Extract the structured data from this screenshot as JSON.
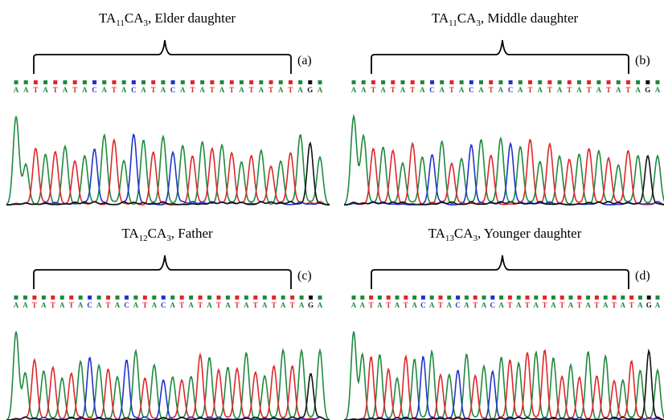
{
  "panels": [
    {
      "title": {
        "a": "TA",
        "n1": "11",
        "b": "CA",
        "n2": "3",
        "rest": ", Elder daughter"
      },
      "label": "(a)",
      "bases": [
        "A",
        "A",
        "T",
        "A",
        "T",
        "A",
        "T",
        "A",
        "C",
        "A",
        "T",
        "A",
        "C",
        "A",
        "T",
        "A",
        "C",
        "A",
        "T",
        "A",
        "T",
        "A",
        "T",
        "A",
        "T",
        "A",
        "T",
        "A",
        "T",
        "A",
        "G",
        "A"
      ]
    },
    {
      "title": {
        "a": "TA",
        "n1": "11",
        "b": "CA",
        "n2": "3",
        "rest": ", Middle daughter"
      },
      "label": "(b)",
      "bases": [
        "A",
        "A",
        "T",
        "A",
        "T",
        "A",
        "T",
        "A",
        "C",
        "A",
        "T",
        "A",
        "C",
        "A",
        "T",
        "A",
        "C",
        "A",
        "T",
        "A",
        "T",
        "A",
        "T",
        "A",
        "T",
        "A",
        "T",
        "A",
        "T",
        "A",
        "G",
        "A"
      ]
    },
    {
      "title": {
        "a": "TA",
        "n1": "12",
        "b": "CA",
        "n2": "3",
        "rest": ", Father"
      },
      "label": "(c)",
      "bases": [
        "A",
        "A",
        "T",
        "A",
        "T",
        "A",
        "T",
        "A",
        "C",
        "A",
        "T",
        "A",
        "C",
        "A",
        "T",
        "A",
        "C",
        "A",
        "T",
        "A",
        "T",
        "A",
        "T",
        "A",
        "T",
        "A",
        "T",
        "A",
        "T",
        "A",
        "T",
        "A",
        "G",
        "A"
      ]
    },
    {
      "title": {
        "a": "TA",
        "n1": "13",
        "b": "CA",
        "n2": "3",
        "rest": ", Younger daughter"
      },
      "label": "(d)",
      "bases": [
        "A",
        "A",
        "T",
        "A",
        "T",
        "A",
        "T",
        "A",
        "C",
        "A",
        "T",
        "A",
        "C",
        "A",
        "T",
        "A",
        "C",
        "A",
        "T",
        "A",
        "T",
        "A",
        "T",
        "A",
        "T",
        "A",
        "T",
        "A",
        "T",
        "A",
        "T",
        "A",
        "T",
        "A",
        "G",
        "A"
      ]
    }
  ],
  "base_colors": {
    "A": "#1f8a3e",
    "T": "#e0262b",
    "C": "#2233cc",
    "G": "#111111"
  }
}
